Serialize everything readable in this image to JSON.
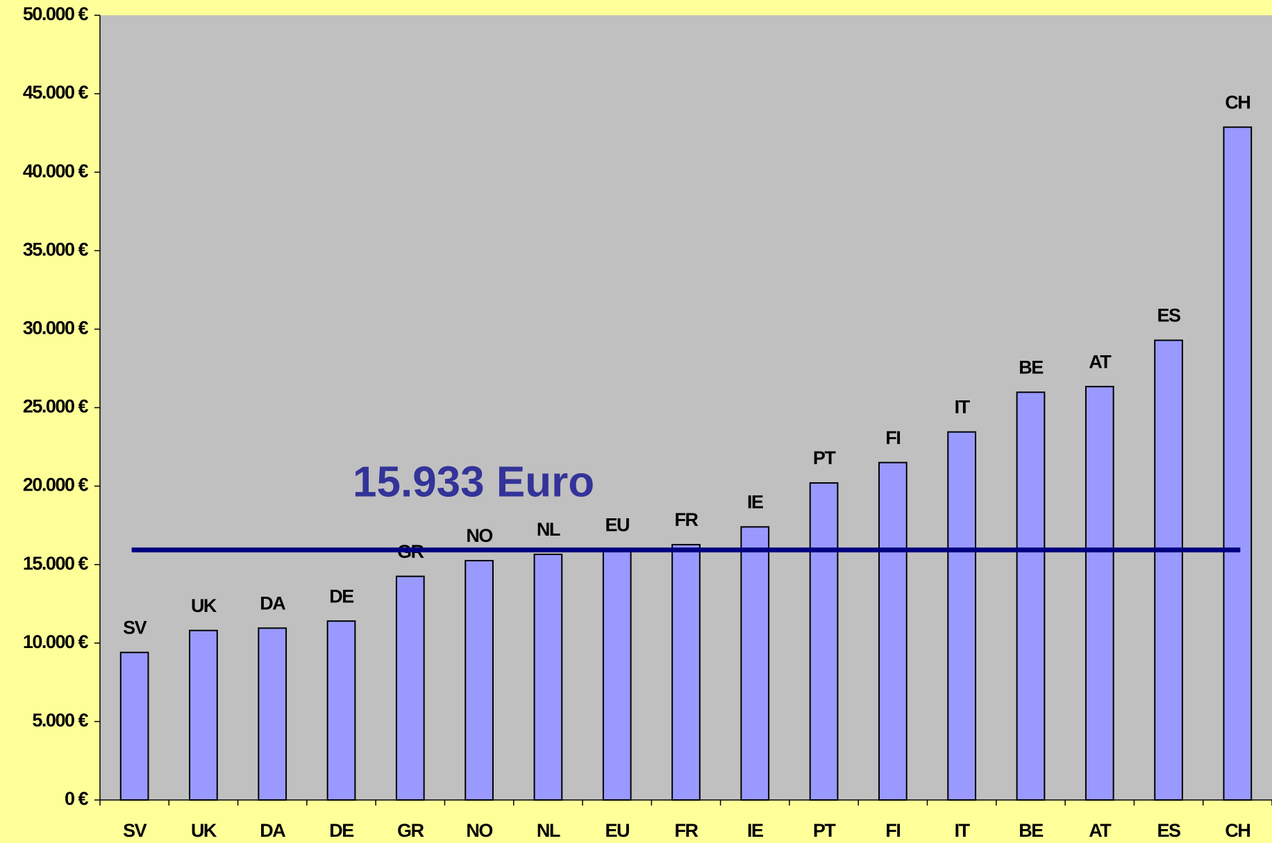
{
  "chart_data": {
    "type": "bar",
    "categories": [
      "SV",
      "UK",
      "DA",
      "DE",
      "GR",
      "NO",
      "NL",
      "EU",
      "FR",
      "IE",
      "PT",
      "FI",
      "IT",
      "BE",
      "AT",
      "ES",
      "CH"
    ],
    "values": [
      9400,
      10800,
      10950,
      11400,
      14250,
      15250,
      15650,
      15933,
      16270,
      17400,
      20200,
      21500,
      23450,
      25980,
      26340,
      29290,
      42870
    ],
    "color": "#9999ff",
    "ylim": [
      0,
      50000
    ],
    "yticks": [
      {
        "value": 0,
        "label": "0 €"
      },
      {
        "value": 5000,
        "label": "5.000 €"
      },
      {
        "value": 10000,
        "label": "10.000 €"
      },
      {
        "value": 15000,
        "label": "15.000 €"
      },
      {
        "value": 20000,
        "label": "20.000 €"
      },
      {
        "value": 25000,
        "label": "25.000 €"
      },
      {
        "value": 30000,
        "label": "30.000 €"
      },
      {
        "value": 35000,
        "label": "35.000 €"
      },
      {
        "value": 40000,
        "label": "40.000 €"
      },
      {
        "value": 45000,
        "label": "45.000 €"
      },
      {
        "value": 50000,
        "label": "50.000 €"
      }
    ],
    "reference_line": {
      "value": 15933,
      "label": "15.933 Euro",
      "color": "#000080"
    },
    "grid": false
  }
}
